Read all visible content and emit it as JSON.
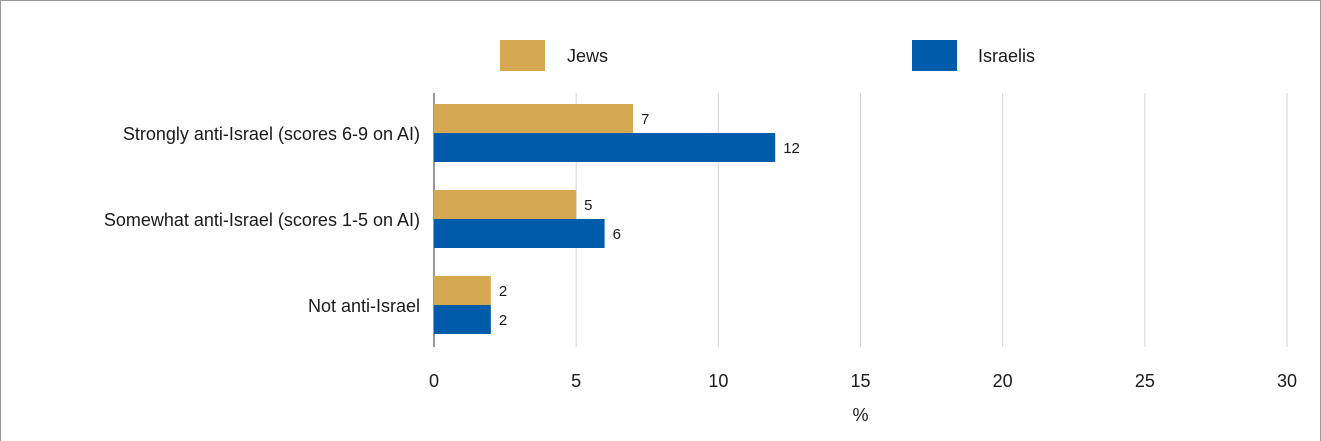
{
  "chart_data": {
    "type": "bar",
    "orientation": "horizontal",
    "categories": [
      "Strongly anti-Israel (scores 6-9 on AI)",
      "Somewhat anti-Israel (scores 1-5 on AI)",
      "Not anti-Israel"
    ],
    "series": [
      {
        "name": "Jews",
        "values": [
          7,
          5,
          2
        ],
        "color": "#d6a852"
      },
      {
        "name": "Israelis",
        "values": [
          12,
          6,
          2
        ],
        "color": "#005bab"
      }
    ],
    "xlabel": "%",
    "ylabel": "",
    "xlim": [
      0,
      30
    ],
    "xticks": [
      0,
      5,
      10,
      15,
      20,
      25,
      30
    ],
    "grid": "vertical",
    "legend_position": "top"
  }
}
